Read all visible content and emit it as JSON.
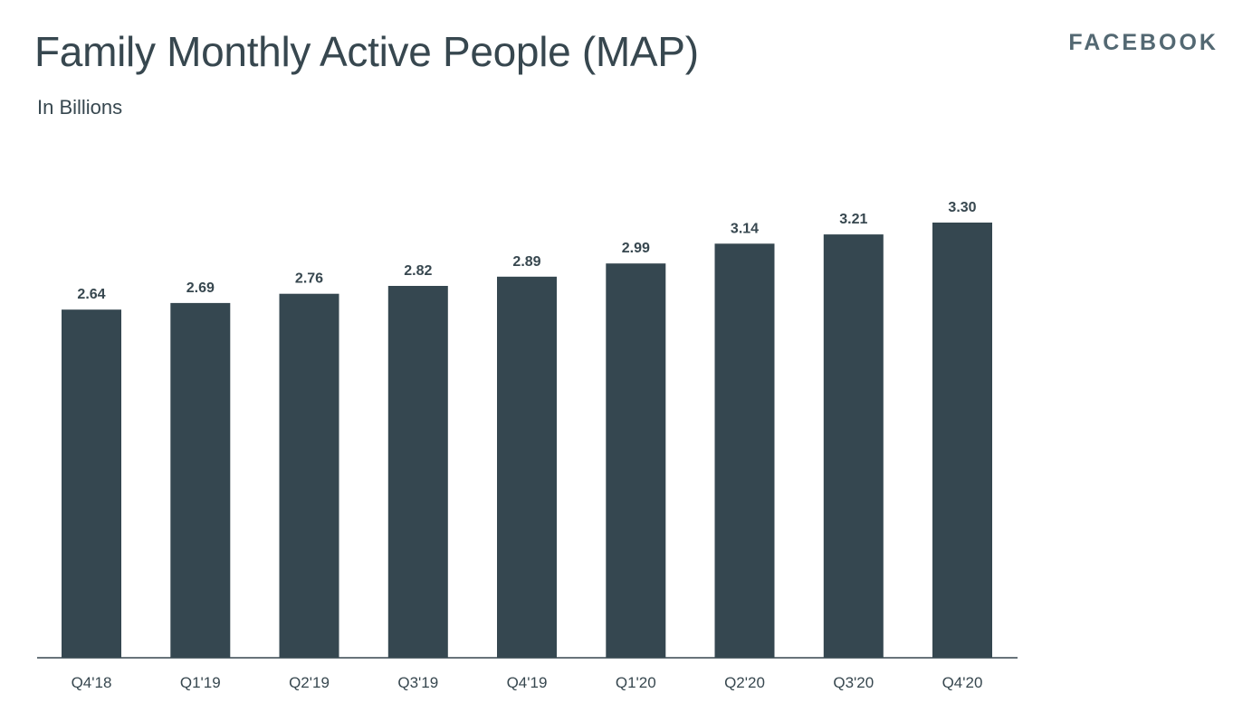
{
  "header": {
    "title": "Family Monthly Active People (MAP)",
    "subtitle": "In Billions",
    "brand": "FACEBOOK"
  },
  "colors": {
    "bar": "#354750",
    "text": "#37474f",
    "brand": "#536872"
  },
  "chart_data": {
    "type": "bar",
    "title": "Family Monthly Active People (MAP)",
    "subtitle": "In Billions",
    "xlabel": "",
    "ylabel": "",
    "categories": [
      "Q4'18",
      "Q1'19",
      "Q2'19",
      "Q3'19",
      "Q4'19",
      "Q1'20",
      "Q2'20",
      "Q3'20",
      "Q4'20"
    ],
    "values": [
      2.64,
      2.69,
      2.76,
      2.82,
      2.89,
      2.99,
      3.14,
      3.21,
      3.3
    ],
    "value_labels": [
      "2.64",
      "2.69",
      "2.76",
      "2.82",
      "2.89",
      "2.99",
      "3.14",
      "3.21",
      "3.30"
    ],
    "ylim": [
      0,
      3.3
    ],
    "grid": false,
    "legend": "none",
    "data_labels": true
  }
}
